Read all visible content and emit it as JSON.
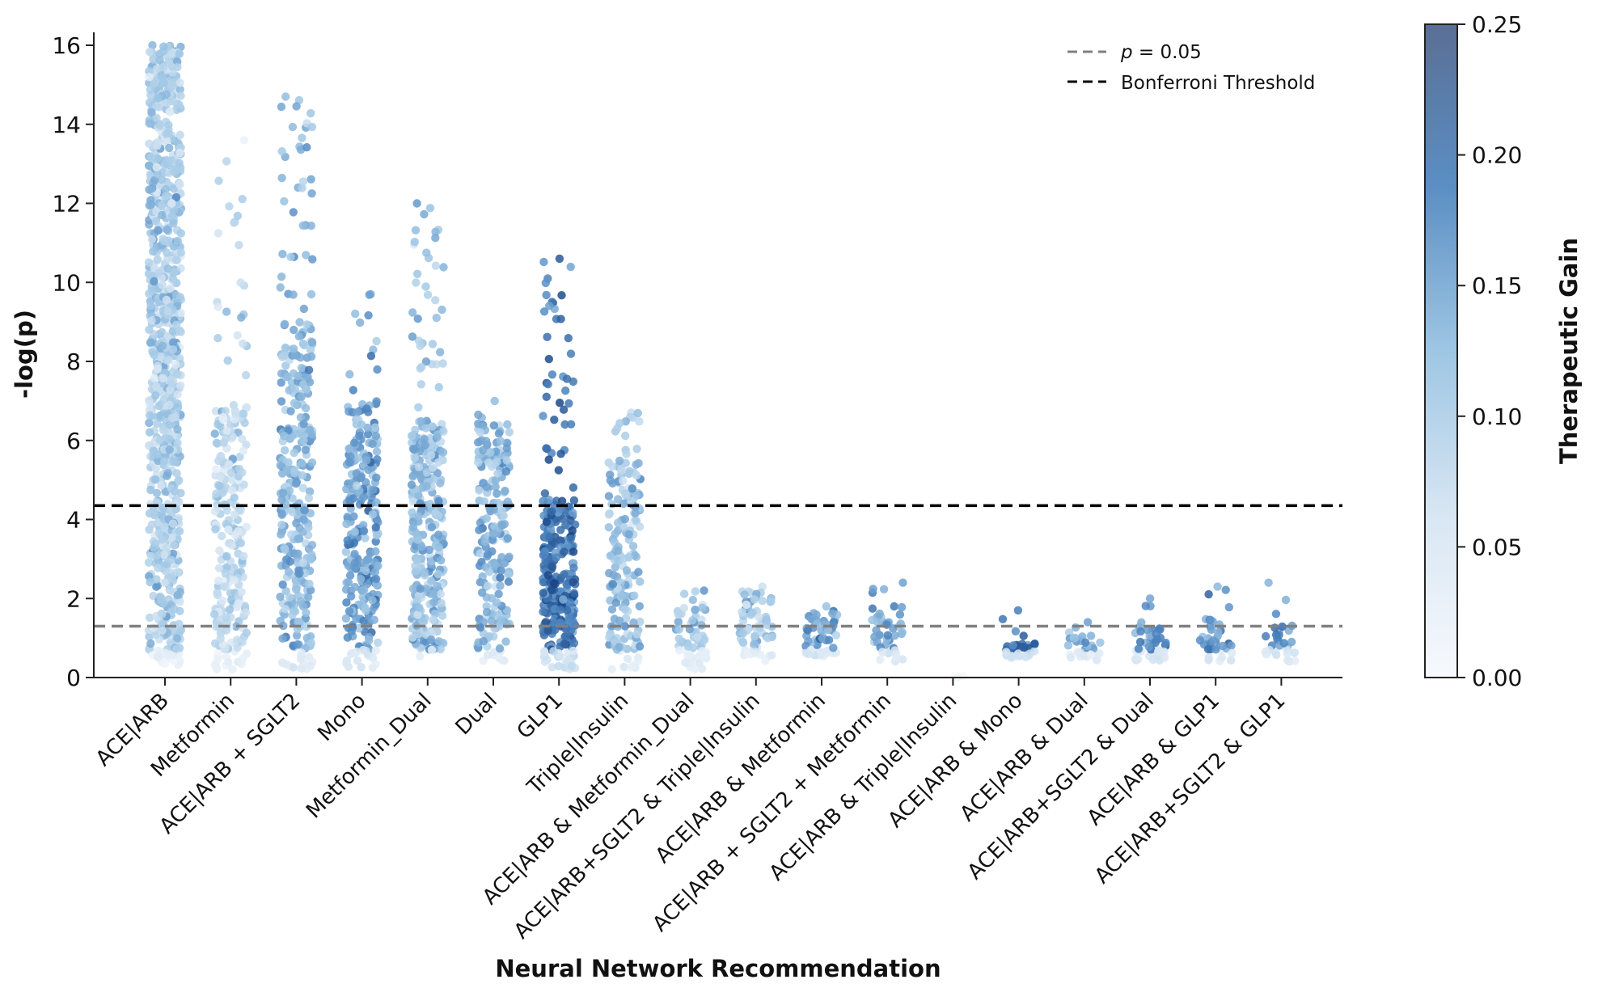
{
  "chart_data": {
    "type": "scatter",
    "subtype": "strip",
    "xlabel": "Neural Network Recommendation",
    "ylabel": "-log(p)",
    "ylim": [
      0,
      16.5
    ],
    "yticks": [
      "0",
      "2",
      "4",
      "6",
      "8",
      "10",
      "12",
      "14",
      "16"
    ],
    "categories": [
      "ACE|ARB",
      "Metformin",
      "ACE|ARB + SGLT2",
      "Mono",
      "Metformin_Dual",
      "Dual",
      "GLP1",
      "Triple|Insulin",
      "ACE|ARB & Metformin_Dual",
      "ACE|ARB+SGLT2 & Triple|Insulin",
      "ACE|ARB & Metformin",
      "ACE|ARB + SGLT2 + Metformin",
      "ACE|ARB & Triple|Insulin",
      "ACE|ARB & Mono",
      "ACE|ARB & Dual",
      "ACE|ARB+SGLT2 & Dual",
      "ACE|ARB & GLP1",
      "ACE|ARB+SGLT2 & GLP1"
    ],
    "series": [
      {
        "category": "ACE|ARB",
        "n": 900,
        "ymax": 16.0,
        "gain_mean": 0.11,
        "dense_min": 0.3,
        "dense_max": 16.0
      },
      {
        "category": "Metformin",
        "n": 260,
        "ymax": 13.6,
        "gain_mean": 0.09,
        "dense_min": 0.2,
        "dense_max": 7.0
      },
      {
        "category": "ACE|ARB + SGLT2",
        "n": 330,
        "ymax": 14.7,
        "gain_mean": 0.14,
        "dense_min": 0.2,
        "dense_max": 9.0
      },
      {
        "category": "Mono",
        "n": 280,
        "ymax": 9.7,
        "gain_mean": 0.16,
        "dense_min": 0.2,
        "dense_max": 7.0
      },
      {
        "category": "Metformin_Dual",
        "n": 360,
        "ymax": 12.0,
        "gain_mean": 0.13,
        "dense_min": 0.5,
        "dense_max": 6.5
      },
      {
        "category": "Dual",
        "n": 220,
        "ymax": 7.0,
        "gain_mean": 0.14,
        "dense_min": 0.4,
        "dense_max": 6.5
      },
      {
        "category": "GLP1",
        "n": 320,
        "ymax": 10.6,
        "gain_mean": 0.21,
        "dense_min": 0.2,
        "dense_max": 4.5
      },
      {
        "category": "Triple|Insulin",
        "n": 180,
        "ymax": 6.7,
        "gain_mean": 0.13,
        "dense_min": 0.2,
        "dense_max": 5.5
      },
      {
        "category": "ACE|ARB & Metformin_Dual",
        "n": 60,
        "ymax": 2.2,
        "gain_mean": 0.12,
        "dense_min": 0.2,
        "dense_max": 1.9
      },
      {
        "category": "ACE|ARB+SGLT2 & Triple|Insulin",
        "n": 70,
        "ymax": 2.3,
        "gain_mean": 0.12,
        "dense_min": 0.4,
        "dense_max": 2.2
      },
      {
        "category": "ACE|ARB & Metformin",
        "n": 60,
        "ymax": 1.8,
        "gain_mean": 0.16,
        "dense_min": 0.5,
        "dense_max": 1.6
      },
      {
        "category": "ACE|ARB + SGLT2 + Metformin",
        "n": 45,
        "ymax": 2.4,
        "gain_mean": 0.15,
        "dense_min": 0.4,
        "dense_max": 1.8
      },
      {
        "category": "ACE|ARB & Triple|Insulin",
        "n": 3,
        "ymax": 0.05,
        "gain_mean": 0.02,
        "dense_min": 0.0,
        "dense_max": 0.05
      },
      {
        "category": "ACE|ARB & Mono",
        "n": 40,
        "ymax": 1.7,
        "gain_mean": 0.21,
        "dense_min": 0.5,
        "dense_max": 0.9
      },
      {
        "category": "ACE|ARB & Dual",
        "n": 35,
        "ymax": 1.4,
        "gain_mean": 0.14,
        "dense_min": 0.4,
        "dense_max": 1.0
      },
      {
        "category": "ACE|ARB+SGLT2 & Dual",
        "n": 45,
        "ymax": 2.0,
        "gain_mean": 0.18,
        "dense_min": 0.4,
        "dense_max": 1.3
      },
      {
        "category": "ACE|ARB & GLP1",
        "n": 40,
        "ymax": 2.3,
        "gain_mean": 0.17,
        "dense_min": 0.4,
        "dense_max": 1.5
      },
      {
        "category": "ACE|ARB+SGLT2 & GLP1",
        "n": 30,
        "ymax": 2.4,
        "gain_mean": 0.17,
        "dense_min": 0.4,
        "dense_max": 1.4
      }
    ],
    "reference_lines": [
      {
        "name": "p = 0.05",
        "label_prefix": "p",
        "label_suffix": " = 0.05",
        "y": 1.3,
        "color": "#808080",
        "style": "dashed"
      },
      {
        "name": "Bonferroni Threshold",
        "label_prefix": "",
        "label_suffix": "Bonferroni Threshold",
        "y": 4.35,
        "color": "#000000",
        "style": "dashed"
      }
    ],
    "legend": {
      "position": "top-right"
    },
    "colorbar": {
      "label": "Therapeutic Gain",
      "range": [
        0.0,
        0.25
      ],
      "ticks": [
        "0.00",
        "0.05",
        "0.10",
        "0.15",
        "0.20",
        "0.25"
      ],
      "colormap": [
        "#f7f9fd",
        "#c9dcef",
        "#8fbddf",
        "#4f88c2",
        "#1d4e8f"
      ]
    },
    "grid": false
  }
}
